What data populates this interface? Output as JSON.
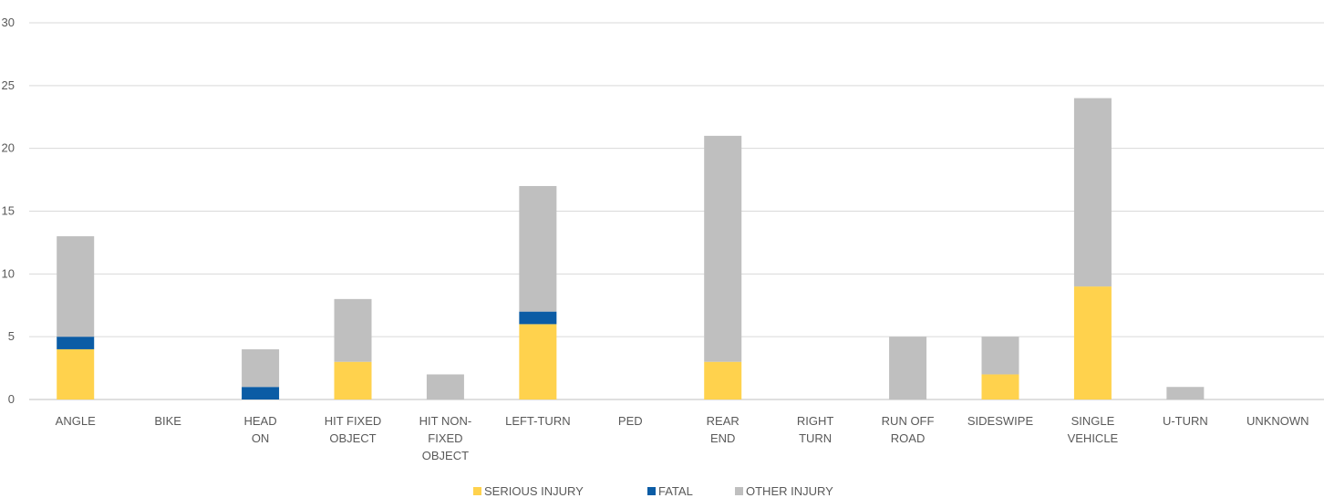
{
  "chart_data": {
    "type": "bar",
    "stacked": true,
    "categories": [
      "ANGLE",
      "BIKE",
      "HEAD ON",
      "HIT FIXED OBJECT",
      "HIT NON-FIXED OBJECT",
      "LEFT-TURN",
      "PED",
      "REAR END",
      "RIGHT TURN",
      "RUN OFF ROAD",
      "SIDESWIPE",
      "SINGLE VEHICLE",
      "U-TURN",
      "UNKNOWN"
    ],
    "category_lines": [
      [
        "ANGLE"
      ],
      [
        "BIKE"
      ],
      [
        "HEAD",
        "ON"
      ],
      [
        "HIT FIXED",
        "OBJECT"
      ],
      [
        "HIT NON-",
        "FIXED",
        "OBJECT"
      ],
      [
        "LEFT-TURN"
      ],
      [
        "PED"
      ],
      [
        "REAR",
        "END"
      ],
      [
        "RIGHT",
        "TURN"
      ],
      [
        "RUN OFF",
        "ROAD"
      ],
      [
        "SIDESWIPE"
      ],
      [
        "SINGLE",
        "VEHICLE"
      ],
      [
        "U-TURN"
      ],
      [
        "UNKNOWN"
      ]
    ],
    "series": [
      {
        "name": "SERIOUS INJURY",
        "color": "#FFD24D",
        "values": [
          4,
          0,
          0,
          3,
          0,
          6,
          0,
          3,
          0,
          0,
          2,
          9,
          0,
          0
        ]
      },
      {
        "name": "FATAL",
        "color": "#0B5CA5",
        "values": [
          1,
          0,
          1,
          0,
          0,
          1,
          0,
          0,
          0,
          0,
          0,
          0,
          0,
          0
        ]
      },
      {
        "name": "OTHER INJURY",
        "color": "#BFBFBF",
        "values": [
          8,
          0,
          3,
          5,
          2,
          10,
          0,
          18,
          0,
          5,
          3,
          15,
          1,
          0
        ]
      }
    ],
    "ylim": [
      0,
      30
    ],
    "yticks": [
      "0",
      "5",
      "10",
      "15",
      "20",
      "25",
      "30"
    ],
    "grid": true,
    "legend_position": "bottom"
  }
}
